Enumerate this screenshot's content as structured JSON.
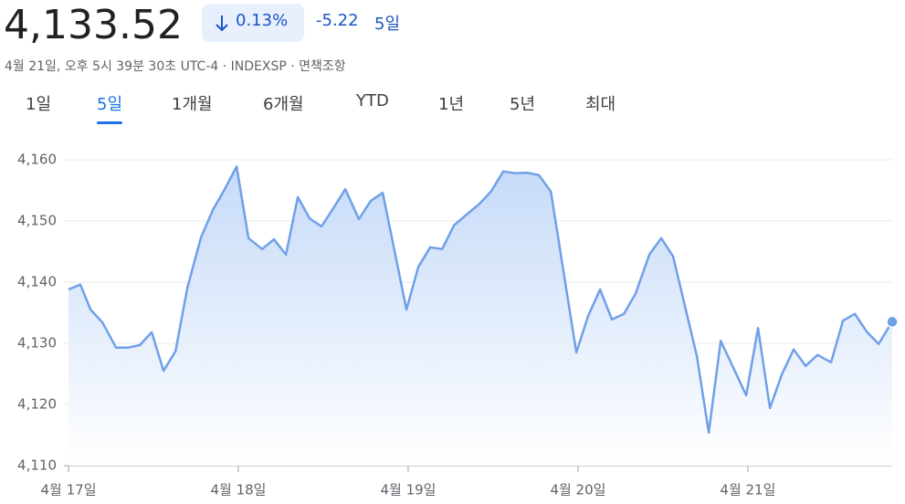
{
  "header": {
    "price": "4,133.52",
    "change_percent": "0.13%",
    "change": "-5.22",
    "period": "5일",
    "subtitle": "4월 21일, 오후 5시 39분 30초 UTC-4 · INDEXSP · 면책조항"
  },
  "tabs": [
    "1일",
    "5일",
    "1개월",
    "6개월",
    "YTD",
    "1년",
    "5년",
    "최대"
  ],
  "selected_tab": 1,
  "chart_data": {
    "type": "area",
    "color": "#6fa0e8",
    "x": [
      0,
      0.07,
      0.13,
      0.2,
      0.28,
      0.35,
      0.42,
      0.49,
      0.56,
      0.63,
      0.7,
      0.78,
      0.85,
      0.92,
      0.99,
      1.06,
      1.14,
      1.21,
      1.28,
      1.35,
      1.42,
      1.49,
      1.56,
      1.63,
      1.71,
      1.78,
      1.85,
      1.99,
      2.06,
      2.13,
      2.2,
      2.27,
      2.35,
      2.42,
      2.49,
      2.56,
      2.63,
      2.7,
      2.77,
      2.84,
      2.99,
      3.06,
      3.13,
      3.2,
      3.27,
      3.34,
      3.42,
      3.49,
      3.56,
      3.7,
      3.77,
      3.84,
      3.99,
      4.06,
      4.13,
      4.2,
      4.27,
      4.34,
      4.41,
      4.49,
      4.56,
      4.63,
      4.7,
      4.77,
      4.85
    ],
    "values": [
      4138.8,
      4139.6,
      4135.5,
      4133.4,
      4129.3,
      4129.3,
      4129.7,
      4131.8,
      4125.5,
      4128.7,
      4139.1,
      4147.3,
      4151.8,
      4155.2,
      4158.9,
      4147.2,
      4145.4,
      4147.0,
      4144.5,
      4153.9,
      4150.4,
      4149.1,
      4152.1,
      4155.2,
      4150.3,
      4153.3,
      4154.6,
      4135.5,
      4142.5,
      4145.7,
      4145.4,
      4149.3,
      4151.2,
      4152.8,
      4154.9,
      4158.1,
      4157.8,
      4157.9,
      4157.5,
      4154.8,
      4128.5,
      4134.5,
      4138.8,
      4133.9,
      4134.8,
      4138.2,
      4144.5,
      4147.2,
      4144.2,
      4127.9,
      4115.4,
      4130.4,
      4121.5,
      4132.5,
      4119.4,
      4124.9,
      4129.0,
      4126.3,
      4128.1,
      4126.9,
      4133.7,
      4134.8,
      4131.9,
      4129.9,
      4133.52
    ],
    "xlim": [
      0,
      4.85
    ],
    "xticks": [
      {
        "value": 0,
        "label": "4월 17일"
      },
      {
        "value": 1,
        "label": "4월 18일"
      },
      {
        "value": 2,
        "label": "4월 19일"
      },
      {
        "value": 3,
        "label": "4월 20일"
      },
      {
        "value": 4,
        "label": "4월 21일"
      }
    ],
    "ylim": [
      4110,
      4160
    ],
    "yticks": [
      {
        "value": 4110,
        "label": "4,110"
      },
      {
        "value": 4120,
        "label": "4,120"
      },
      {
        "value": 4130,
        "label": "4,130"
      },
      {
        "value": 4140,
        "label": "4,140"
      },
      {
        "value": 4150,
        "label": "4,150"
      },
      {
        "value": 4160,
        "label": "4,160"
      }
    ],
    "grid": true
  }
}
